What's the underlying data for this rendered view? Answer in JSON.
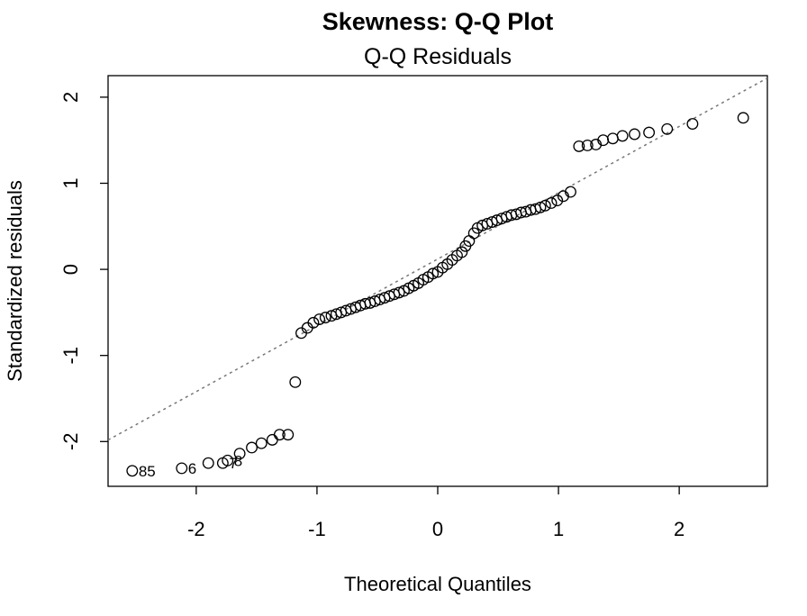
{
  "chart_data": {
    "type": "scatter",
    "title": "Skewness: Q-Q Plot",
    "subtitle": "Q-Q Residuals",
    "xlabel": "Theoretical Quantiles",
    "ylabel": "Standardized residuals",
    "xlim": [
      -2.73,
      2.73
    ],
    "ylim": [
      -2.52,
      2.25
    ],
    "xticks": [
      -2,
      -1,
      0,
      1,
      2
    ],
    "yticks": [
      -2,
      -1,
      0,
      1,
      2
    ],
    "grid": false,
    "color": "#000000",
    "reference_line": {
      "intercept": 0.12,
      "slope": 0.77,
      "color": "#777777"
    },
    "x": [
      -2.53,
      -2.12,
      -1.9,
      -1.78,
      -1.74,
      -1.64,
      -1.54,
      -1.46,
      -1.37,
      -1.31,
      -1.24,
      -1.18,
      -1.13,
      -1.08,
      -1.03,
      -0.98,
      -0.93,
      -0.88,
      -0.84,
      -0.8,
      -0.76,
      -0.72,
      -0.68,
      -0.64,
      -0.6,
      -0.56,
      -0.52,
      -0.48,
      -0.44,
      -0.4,
      -0.36,
      -0.32,
      -0.28,
      -0.24,
      -0.2,
      -0.16,
      -0.12,
      -0.08,
      -0.04,
      0,
      0.04,
      0.08,
      0.12,
      0.16,
      0.2,
      0.23,
      0.26,
      0.3,
      0.33,
      0.37,
      0.41,
      0.45,
      0.49,
      0.53,
      0.57,
      0.61,
      0.65,
      0.69,
      0.73,
      0.77,
      0.81,
      0.85,
      0.89,
      0.94,
      0.99,
      1.04,
      1.1,
      1.17,
      1.24,
      1.31,
      1.37,
      1.45,
      1.53,
      1.63,
      1.75,
      1.9,
      2.11,
      2.53
    ],
    "y": [
      -2.34,
      -2.31,
      -2.25,
      -2.25,
      -2.22,
      -2.14,
      -2.07,
      -2.02,
      -1.98,
      -1.92,
      -1.92,
      -1.31,
      -0.74,
      -0.68,
      -0.62,
      -0.58,
      -0.56,
      -0.54,
      -0.52,
      -0.5,
      -0.48,
      -0.46,
      -0.44,
      -0.42,
      -0.4,
      -0.39,
      -0.37,
      -0.35,
      -0.33,
      -0.31,
      -0.29,
      -0.27,
      -0.25,
      -0.22,
      -0.19,
      -0.16,
      -0.12,
      -0.09,
      -0.05,
      -0.03,
      0.02,
      0.06,
      0.11,
      0.16,
      0.2,
      0.27,
      0.33,
      0.42,
      0.48,
      0.51,
      0.53,
      0.55,
      0.57,
      0.59,
      0.61,
      0.63,
      0.64,
      0.66,
      0.67,
      0.69,
      0.7,
      0.72,
      0.74,
      0.77,
      0.8,
      0.85,
      0.9,
      1.43,
      1.44,
      1.45,
      1.5,
      1.52,
      1.55,
      1.57,
      1.59,
      1.63,
      1.69,
      1.76
    ],
    "labels": [
      "85",
      "6",
      null,
      "7",
      "8",
      null,
      null,
      null,
      null,
      null,
      null,
      null,
      null,
      null,
      null,
      null,
      null,
      null,
      null,
      null,
      null,
      null,
      null,
      null,
      null,
      null,
      null,
      null,
      null,
      null,
      null,
      null,
      null,
      null,
      null,
      null,
      null,
      null,
      null,
      null,
      null,
      null,
      null,
      null,
      null,
      null,
      null,
      null,
      null,
      null,
      null,
      null,
      null,
      null,
      null,
      null,
      null,
      null,
      null,
      null,
      null,
      null,
      null,
      null,
      null,
      null,
      null,
      null,
      null,
      null,
      null,
      null,
      null,
      null,
      null,
      null,
      null,
      null
    ]
  }
}
